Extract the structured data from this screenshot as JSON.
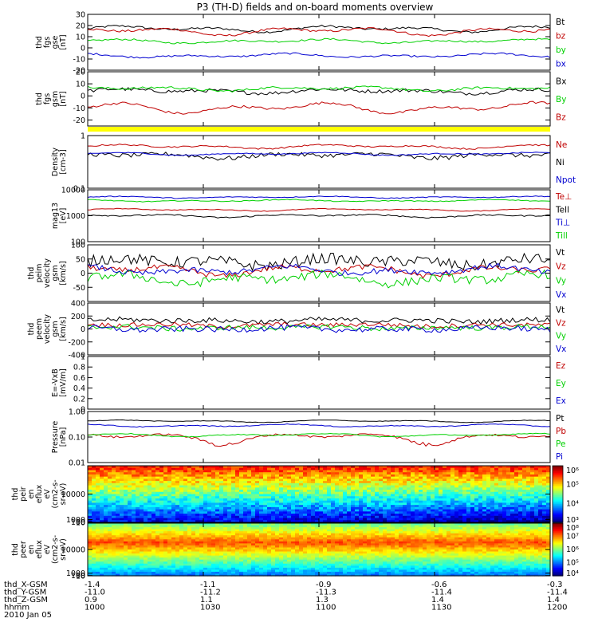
{
  "title": "P3 (TH-D) fields and on-board moments overview",
  "chart_data": [
    {
      "id": "fgs",
      "type": "line",
      "ylabel": [
        "thd",
        "fgs",
        "gse",
        "[nT]"
      ],
      "ylim": [
        -20,
        30
      ],
      "yticks": [
        30,
        20,
        10,
        0,
        -10,
        -20
      ],
      "series": [
        {
          "name": "Bt",
          "color": "#000000",
          "mean": 17,
          "amp": 3,
          "noise": 1
        },
        {
          "name": "bz",
          "color": "#c00000",
          "mean": 15,
          "amp": 4,
          "noise": 1
        },
        {
          "name": "by",
          "color": "#00d000",
          "mean": 6,
          "amp": 2,
          "noise": 0.8
        },
        {
          "name": "bx",
          "color": "#0000d0",
          "mean": -7,
          "amp": 2,
          "noise": 0.8
        }
      ]
    },
    {
      "id": "fgs-gsm",
      "type": "line",
      "ylabel": [
        "thd",
        "fgs",
        "gsm",
        "[nT]"
      ],
      "ylim": [
        -25,
        20
      ],
      "yticks": [
        20,
        10,
        0,
        -10,
        -20
      ],
      "series": [
        {
          "name": "Bx",
          "color": "#000000",
          "mean": 4,
          "amp": 2,
          "noise": 1.5
        },
        {
          "name": "By",
          "color": "#00d000",
          "mean": 6,
          "amp": 2,
          "noise": 1
        },
        {
          "name": "Bz",
          "color": "#c00000",
          "mean": -10,
          "amp": 5,
          "noise": 1
        }
      ]
    },
    {
      "id": "density",
      "type": "line",
      "scale": "log",
      "ylabel": [
        "Density",
        "[cm-3]"
      ],
      "ylim": [
        0.1,
        1.0
      ],
      "yticks": [
        1.0,
        0.1
      ],
      "series": [
        {
          "name": "Ne",
          "color": "#c00000",
          "mean": 0.62,
          "amp": 0.06,
          "noise": 0.02
        },
        {
          "name": "Ni",
          "color": "#000000",
          "mean": 0.42,
          "amp": 0.05,
          "noise": 0.04
        },
        {
          "name": "Npot",
          "color": "#0000d0",
          "mean": 0.45,
          "amp": 0.03,
          "noise": 0.01
        }
      ]
    },
    {
      "id": "temperature",
      "type": "line",
      "scale": "log",
      "ylabel": [
        "mag13",
        "[eV]"
      ],
      "ylim": [
        100,
        10000
      ],
      "yticks": [
        10000,
        1000,
        100
      ],
      "series": [
        {
          "name": "Te⊥",
          "color": "#c00000",
          "mean": 1700,
          "amp": 200,
          "noise": 50
        },
        {
          "name": "Tell",
          "color": "#000000",
          "mean": 1000,
          "amp": 150,
          "noise": 60
        },
        {
          "name": "Ti⊥",
          "color": "#0000d0",
          "mean": 5200,
          "amp": 500,
          "noise": 200
        },
        {
          "name": "Till",
          "color": "#00d000",
          "mean": 3800,
          "amp": 400,
          "noise": 150
        }
      ]
    },
    {
      "id": "peim-vel",
      "type": "line",
      "ylabel": [
        "thd",
        "peim",
        "velocity",
        "gsm",
        "[km/s]"
      ],
      "ylim": [
        -100,
        100
      ],
      "yticks": [
        100,
        50,
        0,
        -50
      ],
      "series": [
        {
          "name": "Vt",
          "color": "#000000",
          "mean": 40,
          "amp": 15,
          "noise": 20
        },
        {
          "name": "Vz",
          "color": "#c00000",
          "mean": 10,
          "amp": 20,
          "noise": 10
        },
        {
          "name": "Vy",
          "color": "#00d000",
          "mean": -20,
          "amp": 20,
          "noise": 15
        },
        {
          "name": "Vx",
          "color": "#0000d0",
          "mean": 10,
          "amp": 15,
          "noise": 10
        }
      ]
    },
    {
      "id": "peem-vel",
      "type": "line",
      "ylabel": [
        "thd",
        "peem",
        "velocity",
        "gsm",
        "[km/s]"
      ],
      "ylim": [
        -400,
        400
      ],
      "yticks": [
        400,
        200,
        0,
        -200,
        -400
      ],
      "series": [
        {
          "name": "Vt",
          "color": "#000000",
          "mean": 130,
          "amp": 20,
          "noise": 40
        },
        {
          "name": "Vz",
          "color": "#c00000",
          "mean": 60,
          "amp": 20,
          "noise": 35
        },
        {
          "name": "Vy",
          "color": "#00d000",
          "mean": 20,
          "amp": 20,
          "noise": 40
        },
        {
          "name": "Vx",
          "color": "#0000d0",
          "mean": 0,
          "amp": 20,
          "noise": 45
        }
      ]
    },
    {
      "id": "exb",
      "type": "line",
      "ylabel": [
        "E=-VxB",
        "[mV/m]"
      ],
      "ylim": [
        0,
        1.0
      ],
      "yticks": [
        1.0,
        0.8,
        0.6,
        0.4,
        0.2,
        0.0
      ],
      "series": [
        {
          "name": "Ez",
          "color": "#c00000"
        },
        {
          "name": "Ey",
          "color": "#00d000"
        },
        {
          "name": "Ex",
          "color": "#0000d0"
        }
      ]
    },
    {
      "id": "pressure",
      "type": "line",
      "scale": "log",
      "ylabel": [
        "Pressure",
        "[nPa]"
      ],
      "ylim": [
        0.01,
        1.0
      ],
      "yticks": [
        1.0,
        0.1,
        0.01
      ],
      "ytick_labels": [
        "1.00",
        "0.10",
        "0.01"
      ],
      "series": [
        {
          "name": "Pt",
          "color": "#000000",
          "mean": 0.42,
          "amp": 0.05,
          "noise": 0.01
        },
        {
          "name": "Pb",
          "color": "#c00000",
          "mean": 0.1,
          "amp": 0.05,
          "noise": 0.01
        },
        {
          "name": "Pe",
          "color": "#00d000",
          "mean": 0.12,
          "amp": 0.02,
          "noise": 0.005
        },
        {
          "name": "Pi",
          "color": "#0000d0",
          "mean": 0.28,
          "amp": 0.04,
          "noise": 0.01
        }
      ]
    },
    {
      "id": "peir",
      "type": "heatmap",
      "ylabel": [
        "thd",
        "peir",
        "en",
        "eflux",
        "eV",
        "(cm2-s-",
        "sr-eV)"
      ],
      "ylim": [
        5,
        20000
      ],
      "yticks": [
        10000,
        1000,
        100,
        10
      ],
      "colorbar": {
        "min_exp": 3,
        "max_exp": 6,
        "ticks": [
          "10⁶",
          "10⁵",
          "10⁴",
          "10³"
        ]
      }
    },
    {
      "id": "peer",
      "type": "heatmap",
      "ylabel": [
        "thd",
        "peer",
        "en",
        "eflux",
        "eV",
        "(cm2-s-",
        "sr-eV)"
      ],
      "ylim": [
        8,
        20000
      ],
      "yticks": [
        10000,
        1000,
        100,
        10
      ],
      "colorbar": {
        "min_exp": 4,
        "max_exp": 8,
        "ticks": [
          "10⁸",
          "10⁷",
          "10⁶",
          "10⁵",
          "10⁴"
        ]
      }
    }
  ],
  "xaxis": {
    "rows": [
      {
        "label": "thd_X-GSM",
        "values": [
          "-1.4",
          "-1.1",
          "-0.9",
          "-0.6",
          "-0.3"
        ]
      },
      {
        "label": "thd_Y-GSM",
        "values": [
          "-11.0",
          "-11.2",
          "-11.3",
          "-11.4",
          "-11.4"
        ]
      },
      {
        "label": "thd_Z-GSM",
        "values": [
          "0.9",
          "1.1",
          "1.3",
          "1.4",
          "1.4"
        ]
      },
      {
        "label": "hhmm",
        "values": [
          "1000",
          "1030",
          "1100",
          "1130",
          "1200"
        ]
      }
    ],
    "date": "2010 Jan 05"
  }
}
